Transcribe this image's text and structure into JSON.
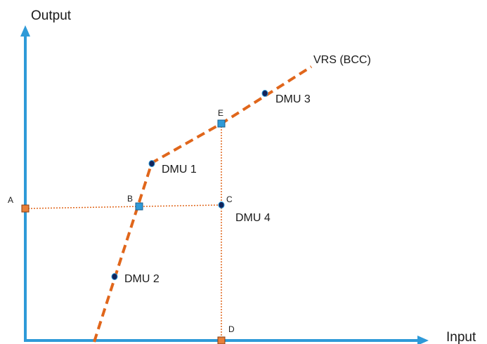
{
  "axes": {
    "y_label": "Output",
    "x_label": "Input"
  },
  "frontier": {
    "label": "VRS (BCC)"
  },
  "units": {
    "dmu1": "DMU 1",
    "dmu2": "DMU 2",
    "dmu3": "DMU 3",
    "dmu4": "DMU 4"
  },
  "points": {
    "a": "A",
    "b": "B",
    "c": "C",
    "d": "D",
    "e": "E"
  },
  "colors": {
    "axis": "#2e9ad8",
    "frontier": "#e0661b",
    "guide": "#e0661b",
    "square_blue": "#2e9ad8",
    "square_orange": "#e8803a",
    "dot": "#10245c"
  }
}
